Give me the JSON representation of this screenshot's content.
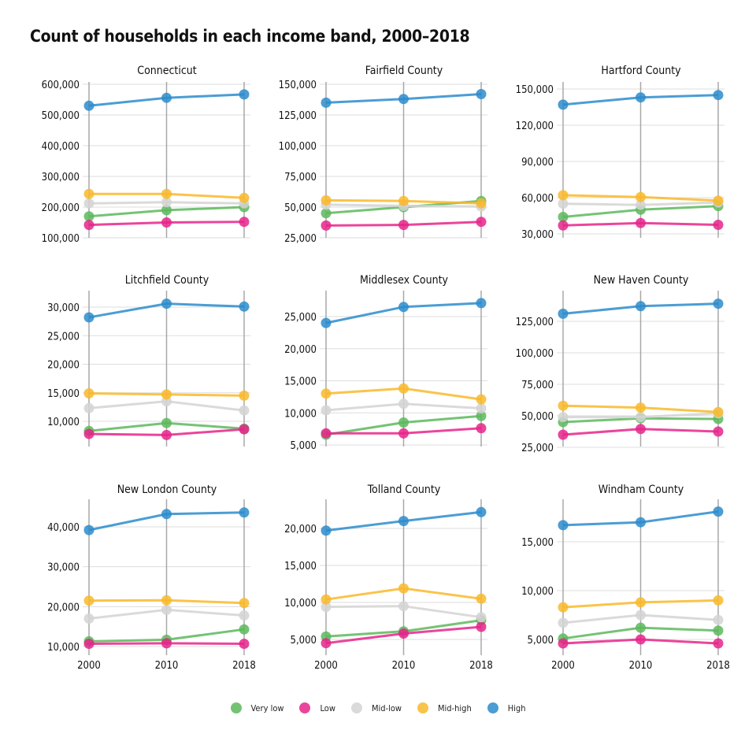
{
  "title": "Count of households in each income band, 2000–2018",
  "colors": {
    "Very low": "#5cb85c",
    "Low": "#e6258b",
    "Mid-low": "#d3d3d3",
    "Mid-high": "#f9b92a",
    "High": "#2b8ccd"
  },
  "legend": [
    "Very low",
    "Low",
    "Mid-low",
    "Mid-high",
    "High"
  ],
  "chart_data": [
    {
      "type": "line",
      "title": "Connecticut",
      "x": [
        "2000",
        "2010",
        "2018"
      ],
      "ylim": [
        100000,
        600000
      ],
      "yticks": [
        100000,
        200000,
        300000,
        400000,
        500000,
        600000
      ],
      "ytick_labels": [
        "100,000",
        "200,000",
        "300,000",
        "400,000",
        "500,000",
        "600,000"
      ],
      "series": [
        {
          "name": "Very low",
          "values": [
            170000,
            190000,
            200000
          ]
        },
        {
          "name": "Low",
          "values": [
            142000,
            150000,
            152000
          ]
        },
        {
          "name": "Mid-low",
          "values": [
            212000,
            216000,
            212000
          ]
        },
        {
          "name": "Mid-high",
          "values": [
            243000,
            243000,
            230000
          ]
        },
        {
          "name": "High",
          "values": [
            530000,
            556000,
            567000
          ]
        }
      ]
    },
    {
      "type": "line",
      "title": "Fairfield County",
      "x": [
        "2000",
        "2010",
        "2018"
      ],
      "ylim": [
        25000,
        150000
      ],
      "yticks": [
        25000,
        50000,
        75000,
        100000,
        125000,
        150000
      ],
      "ytick_labels": [
        "25,000",
        "50,000",
        "75,000",
        "100,000",
        "125,000",
        "150,000"
      ],
      "series": [
        {
          "name": "Very low",
          "values": [
            45000,
            50000,
            55000
          ]
        },
        {
          "name": "Low",
          "values": [
            35000,
            35500,
            38000
          ]
        },
        {
          "name": "Mid-low",
          "values": [
            52000,
            51000,
            50500
          ]
        },
        {
          "name": "Mid-high",
          "values": [
            55500,
            55000,
            53000
          ]
        },
        {
          "name": "High",
          "values": [
            135000,
            138000,
            142000
          ]
        }
      ]
    },
    {
      "type": "line",
      "title": "Hartford County",
      "x": [
        "2000",
        "2010",
        "2018"
      ],
      "ylim": [
        30000,
        150000
      ],
      "yticks": [
        30000,
        60000,
        90000,
        120000,
        150000
      ],
      "ytick_labels": [
        "30,000",
        "60,000",
        "90,000",
        "120,000",
        "150,000"
      ],
      "series": [
        {
          "name": "Very low",
          "values": [
            44000,
            50000,
            53000
          ]
        },
        {
          "name": "Low",
          "values": [
            37000,
            39000,
            37500
          ]
        },
        {
          "name": "Mid-low",
          "values": [
            55000,
            54000,
            56000
          ]
        },
        {
          "name": "Mid-high",
          "values": [
            62000,
            60500,
            57500
          ]
        },
        {
          "name": "High",
          "values": [
            137000,
            143000,
            145000
          ]
        }
      ]
    },
    {
      "type": "line",
      "title": "Litchfield County",
      "x": [
        "2000",
        "2010",
        "2018"
      ],
      "ylim": [
        10000,
        30000
      ],
      "yticks": [
        10000,
        15000,
        20000,
        25000,
        30000
      ],
      "ytick_labels": [
        "10,000",
        "15,000",
        "20,000",
        "25,000",
        "30,000"
      ],
      "series": [
        {
          "name": "Very low",
          "values": [
            8300,
            9700,
            8700
          ]
        },
        {
          "name": "Low",
          "values": [
            7800,
            7600,
            8600
          ]
        },
        {
          "name": "Mid-low",
          "values": [
            12300,
            13500,
            11900
          ]
        },
        {
          "name": "Mid-high",
          "values": [
            14900,
            14700,
            14500
          ]
        },
        {
          "name": "High",
          "values": [
            28200,
            30600,
            30100
          ]
        }
      ]
    },
    {
      "type": "line",
      "title": "Middlesex County",
      "x": [
        "2000",
        "2010",
        "2018"
      ],
      "ylim": [
        5000,
        25000
      ],
      "yticks": [
        5000,
        10000,
        15000,
        20000,
        25000
      ],
      "ytick_labels": [
        "5,000",
        "10,000",
        "15,000",
        "20,000",
        "25,000"
      ],
      "series": [
        {
          "name": "Very low",
          "values": [
            6600,
            8500,
            9500
          ]
        },
        {
          "name": "Low",
          "values": [
            6800,
            6800,
            7600
          ]
        },
        {
          "name": "Mid-low",
          "values": [
            10400,
            11400,
            10700
          ]
        },
        {
          "name": "Mid-high",
          "values": [
            13000,
            13800,
            12100
          ]
        },
        {
          "name": "High",
          "values": [
            24000,
            26500,
            27100
          ]
        }
      ]
    },
    {
      "type": "line",
      "title": "New Haven County",
      "x": [
        "2000",
        "2010",
        "2018"
      ],
      "ylim": [
        25000,
        125000
      ],
      "yticks": [
        25000,
        50000,
        75000,
        100000,
        125000
      ],
      "ytick_labels": [
        "25,000",
        "50,000",
        "75,000",
        "100,000",
        "125,000"
      ],
      "series": [
        {
          "name": "Very low",
          "values": [
            45000,
            48000,
            47500
          ]
        },
        {
          "name": "Low",
          "values": [
            35000,
            39500,
            37500
          ]
        },
        {
          "name": "Mid-low",
          "values": [
            49000,
            49000,
            52000
          ]
        },
        {
          "name": "Mid-high",
          "values": [
            58000,
            56500,
            53000
          ]
        },
        {
          "name": "High",
          "values": [
            131000,
            137000,
            139000
          ]
        }
      ]
    },
    {
      "type": "line",
      "title": "New London County",
      "x": [
        "2000",
        "2010",
        "2018"
      ],
      "ylim": [
        10000,
        40000
      ],
      "yticks": [
        10000,
        20000,
        30000,
        40000
      ],
      "ytick_labels": [
        "10,000",
        "20,000",
        "30,000",
        "40,000"
      ],
      "series": [
        {
          "name": "Very low",
          "values": [
            11300,
            11700,
            14300
          ]
        },
        {
          "name": "Low",
          "values": [
            10700,
            10800,
            10700
          ]
        },
        {
          "name": "Mid-low",
          "values": [
            17000,
            19200,
            17800
          ]
        },
        {
          "name": "Mid-high",
          "values": [
            21500,
            21600,
            20900
          ]
        },
        {
          "name": "High",
          "values": [
            39200,
            43200,
            43600
          ]
        }
      ]
    },
    {
      "type": "line",
      "title": "Tolland County",
      "x": [
        "2000",
        "2010",
        "2018"
      ],
      "ylim": [
        5000,
        20000
      ],
      "yticks": [
        5000,
        10000,
        15000,
        20000
      ],
      "ytick_labels": [
        "5,000",
        "10,000",
        "15,000",
        "20,000"
      ],
      "series": [
        {
          "name": "Very low",
          "values": [
            5400,
            6100,
            7600
          ]
        },
        {
          "name": "Low",
          "values": [
            4500,
            5800,
            6700
          ]
        },
        {
          "name": "Mid-low",
          "values": [
            9400,
            9500,
            8000
          ]
        },
        {
          "name": "Mid-high",
          "values": [
            10400,
            11900,
            10500
          ]
        },
        {
          "name": "High",
          "values": [
            19700,
            21000,
            22200
          ]
        }
      ]
    },
    {
      "type": "line",
      "title": "Windham County",
      "x": [
        "2000",
        "2010",
        "2018"
      ],
      "ylim": [
        5000,
        15000
      ],
      "yticks": [
        5000,
        10000,
        15000
      ],
      "ytick_labels": [
        "5,000",
        "10,000",
        "15,000"
      ],
      "series": [
        {
          "name": "Very low",
          "values": [
            5100,
            6200,
            5900
          ]
        },
        {
          "name": "Low",
          "values": [
            4600,
            5000,
            4600
          ]
        },
        {
          "name": "Mid-low",
          "values": [
            6700,
            7500,
            7000
          ]
        },
        {
          "name": "Mid-high",
          "values": [
            8300,
            8800,
            9000
          ]
        },
        {
          "name": "High",
          "values": [
            16700,
            17000,
            18100
          ]
        }
      ]
    }
  ]
}
